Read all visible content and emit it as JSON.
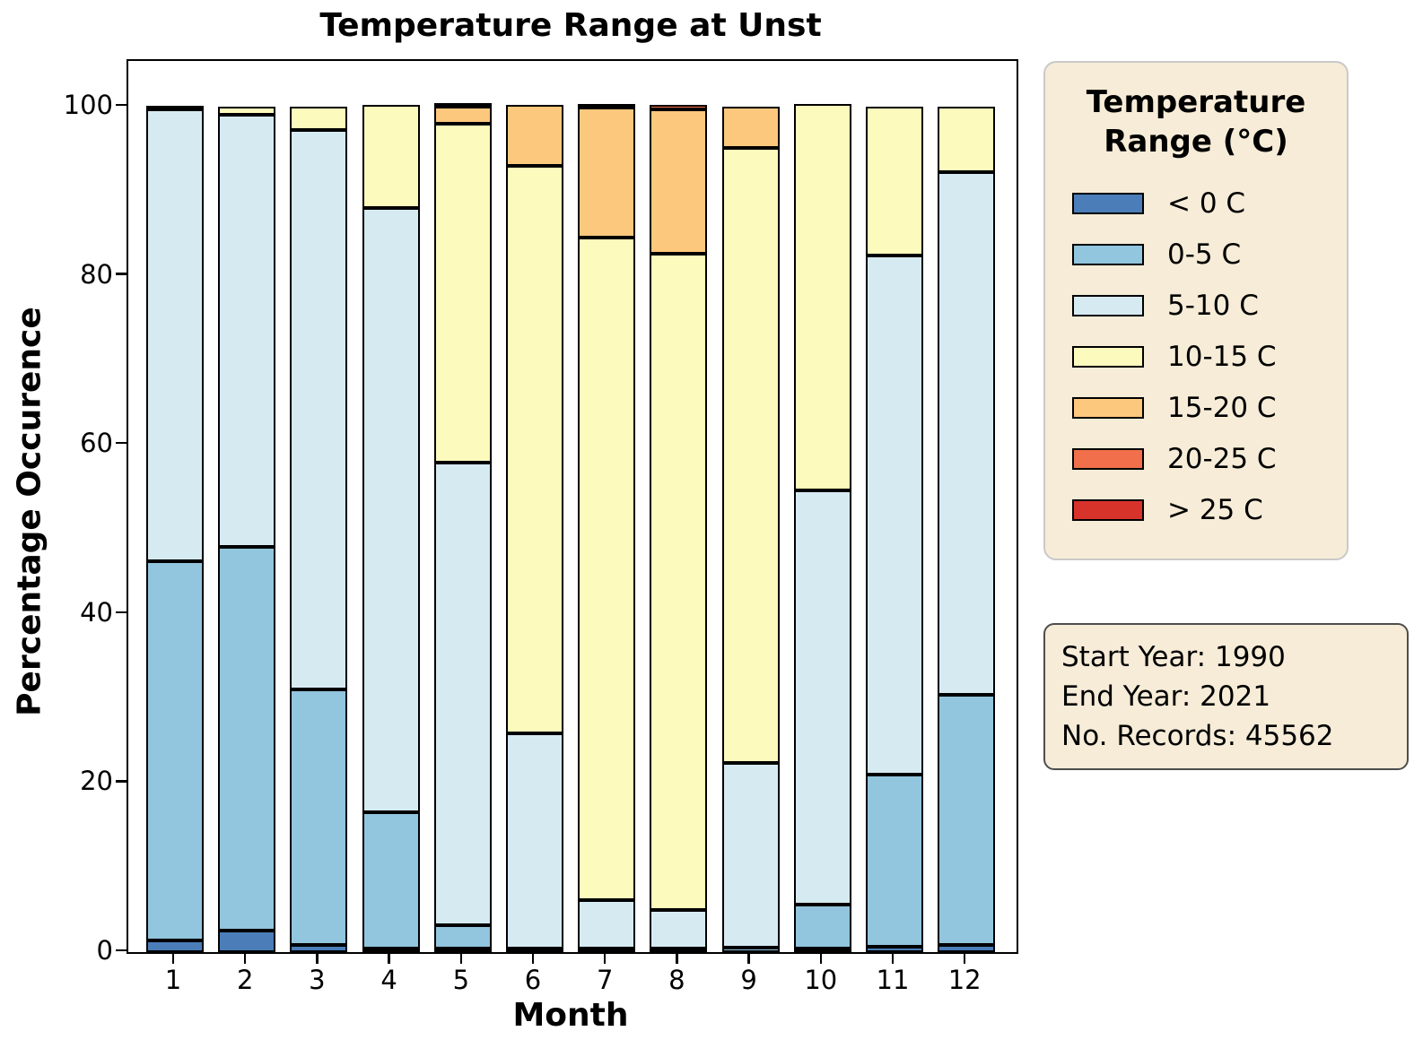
{
  "title": "Temperature Range at Unst",
  "axes": {
    "ylabel": "Percentage Occurence",
    "xlabel": "Month",
    "yticks": [
      0,
      20,
      40,
      60,
      80,
      100
    ],
    "xticks": [
      "1",
      "2",
      "3",
      "4",
      "5",
      "6",
      "7",
      "8",
      "9",
      "10",
      "11",
      "12"
    ]
  },
  "legend": {
    "title_line1": "Temperature",
    "title_line2": "Range (°C)"
  },
  "info_box": {
    "lines": [
      "Start Year: 1990",
      "End Year: 2021",
      "No. Records: 45562"
    ]
  },
  "chart_data": {
    "type": "bar",
    "stacked": true,
    "title": "Temperature Range at Unst",
    "xlabel": "Month",
    "ylabel": "Percentage Occurence",
    "ylim": [
      0,
      105.4
    ],
    "grid": false,
    "legend_position": "right",
    "categories": [
      1,
      2,
      3,
      4,
      5,
      6,
      7,
      8,
      9,
      10,
      11,
      12
    ],
    "series": [
      {
        "name": "< 0 C",
        "color": "#4b7db9",
        "values": [
          1.4,
          2.5,
          0.8,
          0.2,
          0.1,
          0,
          0,
          0,
          0,
          0.1,
          0.6,
          0.8
        ]
      },
      {
        "name": "0-5 C",
        "color": "#92c5de",
        "values": [
          44.8,
          45.4,
          30.3,
          16.1,
          2.8,
          0.2,
          0.2,
          0.2,
          0.5,
          5.2,
          20.4,
          29.6
        ]
      },
      {
        "name": "5-10 C",
        "color": "#d6eaf2",
        "values": [
          53.5,
          51.2,
          66.1,
          71.5,
          54.7,
          25.5,
          5.7,
          4.6,
          21.9,
          49.0,
          61.4,
          61.9
        ]
      },
      {
        "name": "10-15 C",
        "color": "#fcfabc",
        "values": [
          0.3,
          0.9,
          2.8,
          12.2,
          40.1,
          67.1,
          78.4,
          77.6,
          72.7,
          45.7,
          17.6,
          7.7
        ]
      },
      {
        "name": "15-20 C",
        "color": "#fcc87d",
        "values": [
          0,
          0,
          0,
          0,
          2.0,
          7.2,
          15.4,
          17.1,
          4.9,
          0,
          0,
          0
        ]
      },
      {
        "name": "20-25 C",
        "color": "#f1704b",
        "values": [
          0,
          0,
          0,
          0,
          0.3,
          0,
          0.3,
          0.5,
          0,
          0,
          0,
          0
        ]
      },
      {
        "name": "> 25 C",
        "color": "#d7332b",
        "values": [
          0,
          0,
          0,
          0,
          0,
          0,
          0,
          0,
          0,
          0,
          0,
          0
        ]
      }
    ]
  }
}
